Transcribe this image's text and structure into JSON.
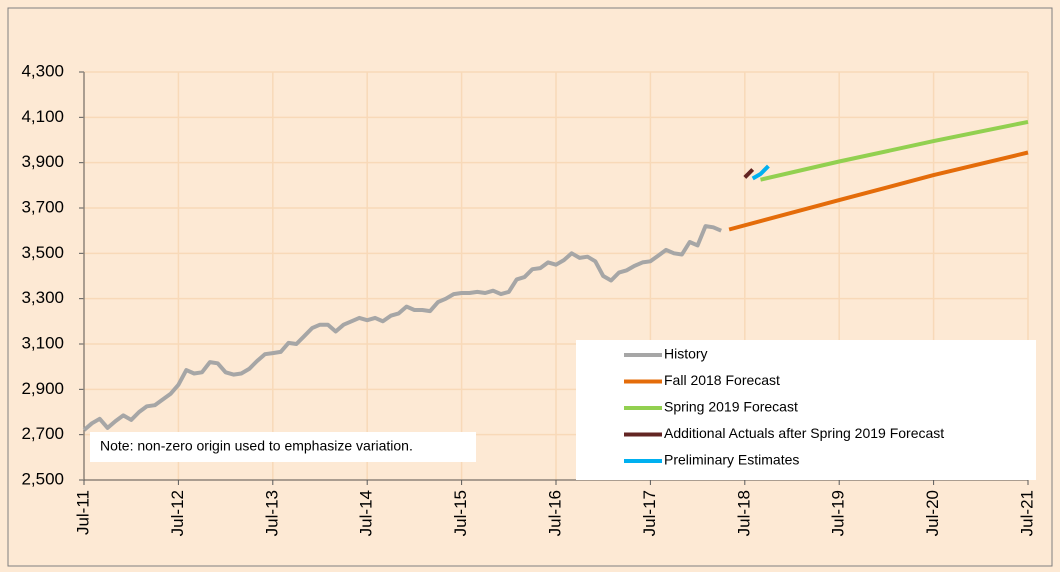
{
  "chart_data": {
    "type": "line",
    "note": "Note: non-zero origin used to emphasize variation.",
    "xlim": [
      "2011-07",
      "2021-07"
    ],
    "xticks": [
      {
        "value": "2011-07",
        "label": "Jul-11"
      },
      {
        "value": "2012-07",
        "label": "Jul-12"
      },
      {
        "value": "2013-07",
        "label": "Jul-13"
      },
      {
        "value": "2014-07",
        "label": "Jul-14"
      },
      {
        "value": "2015-07",
        "label": "Jul-15"
      },
      {
        "value": "2016-07",
        "label": "Jul-16"
      },
      {
        "value": "2017-07",
        "label": "Jul-17"
      },
      {
        "value": "2018-07",
        "label": "Jul-18"
      },
      {
        "value": "2019-07",
        "label": "Jul-19"
      },
      {
        "value": "2020-07",
        "label": "Jul-20"
      },
      {
        "value": "2021-07",
        "label": "Jul-21"
      }
    ],
    "ylim": [
      2500,
      4300
    ],
    "yticks": [
      {
        "value": 2500,
        "label": "2,500"
      },
      {
        "value": 2700,
        "label": "2,700"
      },
      {
        "value": 2900,
        "label": "2,900"
      },
      {
        "value": 3100,
        "label": "3,100"
      },
      {
        "value": 3300,
        "label": "3,300"
      },
      {
        "value": 3500,
        "label": "3,500"
      },
      {
        "value": 3700,
        "label": "3,700"
      },
      {
        "value": 3900,
        "label": "3,900"
      },
      {
        "value": 4100,
        "label": "4,100"
      },
      {
        "value": 4300,
        "label": "4,300"
      }
    ],
    "grid": true,
    "series": [
      {
        "name": "History",
        "color": "#a6a6a6",
        "x": [
          "2011-07",
          "2011-08",
          "2011-09",
          "2011-10",
          "2011-11",
          "2011-12",
          "2012-01",
          "2012-02",
          "2012-03",
          "2012-04",
          "2012-05",
          "2012-06",
          "2012-07",
          "2012-08",
          "2012-09",
          "2012-10",
          "2012-11",
          "2012-12",
          "2013-01",
          "2013-02",
          "2013-03",
          "2013-04",
          "2013-05",
          "2013-06",
          "2013-07",
          "2013-08",
          "2013-09",
          "2013-10",
          "2013-11",
          "2013-12",
          "2014-01",
          "2014-02",
          "2014-03",
          "2014-04",
          "2014-05",
          "2014-06",
          "2014-07",
          "2014-08",
          "2014-09",
          "2014-10",
          "2014-11",
          "2014-12",
          "2015-01",
          "2015-02",
          "2015-03",
          "2015-04",
          "2015-05",
          "2015-06",
          "2015-07",
          "2015-08",
          "2015-09",
          "2015-10",
          "2015-11",
          "2015-12",
          "2016-01",
          "2016-02",
          "2016-03",
          "2016-04",
          "2016-05",
          "2016-06",
          "2016-07",
          "2016-08",
          "2016-09",
          "2016-10",
          "2016-11",
          "2016-12",
          "2017-01",
          "2017-02",
          "2017-03",
          "2017-04",
          "2017-05",
          "2017-06",
          "2017-07",
          "2017-08",
          "2017-09",
          "2017-10",
          "2017-11",
          "2017-12",
          "2018-01",
          "2018-02",
          "2018-03",
          "2018-04"
        ],
        "values": [
          2720,
          2750,
          2770,
          2730,
          2760,
          2785,
          2765,
          2800,
          2825,
          2830,
          2855,
          2880,
          2920,
          2985,
          2970,
          2975,
          3020,
          3015,
          2975,
          2965,
          2970,
          2990,
          3025,
          3055,
          3060,
          3065,
          3105,
          3100,
          3135,
          3170,
          3185,
          3185,
          3155,
          3185,
          3200,
          3215,
          3205,
          3215,
          3200,
          3225,
          3235,
          3265,
          3250,
          3250,
          3245,
          3285,
          3300,
          3320,
          3325,
          3325,
          3330,
          3325,
          3335,
          3320,
          3330,
          3385,
          3395,
          3430,
          3435,
          3460,
          3450,
          3470,
          3500,
          3480,
          3485,
          3465,
          3400,
          3380,
          3415,
          3425,
          3445,
          3460,
          3465,
          3490,
          3515,
          3500,
          3495,
          3550,
          3535,
          3620,
          3615,
          3600
        ]
      },
      {
        "name": "Fall 2018 Forecast",
        "color": "#e46c0a",
        "x": [
          "2018-05",
          "2019-07",
          "2020-07",
          "2021-07"
        ],
        "values": [
          3605,
          3735,
          3845,
          3945
        ]
      },
      {
        "name": "Spring 2019 Forecast",
        "color": "#92d050",
        "x": [
          "2018-09",
          "2019-07",
          "2020-07",
          "2021-07"
        ],
        "values": [
          3825,
          3905,
          3995,
          4080
        ]
      },
      {
        "name": "Additional Actuals after Spring 2019 Forecast",
        "color": "#632523",
        "x": [
          "2018-07",
          "2018-08"
        ],
        "values": [
          3835,
          3870
        ]
      },
      {
        "name": "Preliminary Estimates",
        "color": "#00b0f0",
        "x": [
          "2018-08",
          "2018-09",
          "2018-10"
        ],
        "values": [
          3830,
          3850,
          3885
        ]
      }
    ]
  }
}
